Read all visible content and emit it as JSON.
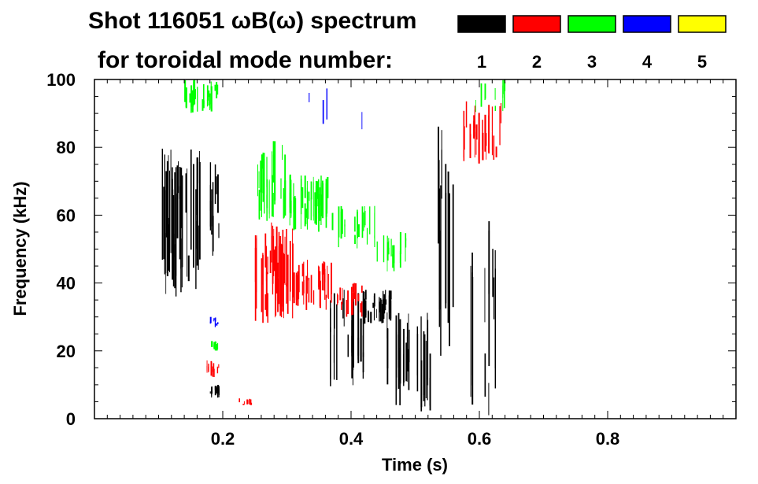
{
  "chart_data": {
    "type": "spectrogram",
    "title_line1": "Shot 116051 ωB(ω) spectrum",
    "title_line2": "for toroidal mode number:",
    "xlabel": "Time (s)",
    "ylabel": "Frequency (kHz)",
    "xlim": [
      0.0,
      1.0
    ],
    "ylim": [
      0,
      100
    ],
    "x_ticks": [
      {
        "value": 0.2,
        "label": "0.2"
      },
      {
        "value": 0.4,
        "label": "0.4"
      },
      {
        "value": 0.6,
        "label": "0.6"
      },
      {
        "value": 0.8,
        "label": "0.8"
      }
    ],
    "y_ticks": [
      {
        "value": 0,
        "label": "0"
      },
      {
        "value": 20,
        "label": "20"
      },
      {
        "value": 40,
        "label": "40"
      },
      {
        "value": 60,
        "label": "60"
      },
      {
        "value": 80,
        "label": "80"
      },
      {
        "value": 100,
        "label": "100"
      }
    ],
    "legend": [
      {
        "label": "1",
        "color": "#000000"
      },
      {
        "label": "2",
        "color": "#ff0000"
      },
      {
        "label": "3",
        "color": "#00ff00"
      },
      {
        "label": "4",
        "color": "#0000ff"
      },
      {
        "label": "5",
        "color": "#ffff00"
      }
    ],
    "series": [
      {
        "name": "1",
        "color": "#000000",
        "regions": [
          {
            "t": [
              0.105,
              0.165
            ],
            "f": [
              36,
              80
            ],
            "density": 0.9
          },
          {
            "t": [
              0.18,
              0.195
            ],
            "f": [
              48,
              76
            ],
            "density": 0.8
          },
          {
            "t": [
              0.365,
              0.42
            ],
            "f": [
              7,
              38
            ],
            "density": 0.35
          },
          {
            "t": [
              0.42,
              0.48
            ],
            "f": [
              28,
              38
            ],
            "density": 0.5
          },
          {
            "t": [
              0.44,
              0.53
            ],
            "f": [
              2,
              32
            ],
            "density": 0.25
          },
          {
            "t": [
              0.535,
              0.56
            ],
            "f": [
              18,
              87
            ],
            "density": 0.8
          },
          {
            "t": [
              0.58,
              0.63
            ],
            "f": [
              1,
              60
            ],
            "density": 0.2
          },
          {
            "t": [
              0.18,
              0.195
            ],
            "f": [
              6,
              10
            ],
            "density": 0.6
          }
        ]
      },
      {
        "name": "2",
        "color": "#ff0000",
        "regions": [
          {
            "t": [
              0.25,
              0.31
            ],
            "f": [
              28,
              58
            ],
            "density": 0.8
          },
          {
            "t": [
              0.31,
              0.37
            ],
            "f": [
              32,
              47
            ],
            "density": 0.65
          },
          {
            "t": [
              0.37,
              0.42
            ],
            "f": [
              30,
              40
            ],
            "density": 0.4
          },
          {
            "t": [
              0.575,
              0.635
            ],
            "f": [
              75,
              95
            ],
            "density": 0.6
          },
          {
            "t": [
              0.175,
              0.195
            ],
            "f": [
              12,
              18
            ],
            "density": 0.6
          },
          {
            "t": [
              0.225,
              0.245
            ],
            "f": [
              4,
              6
            ],
            "density": 0.7
          }
        ]
      },
      {
        "name": "3",
        "color": "#00ff00",
        "regions": [
          {
            "t": [
              0.25,
              0.3
            ],
            "f": [
              58,
              82
            ],
            "density": 0.7
          },
          {
            "t": [
              0.3,
              0.37
            ],
            "f": [
              55,
              72
            ],
            "density": 0.6
          },
          {
            "t": [
              0.37,
              0.44
            ],
            "f": [
              50,
              63
            ],
            "density": 0.5
          },
          {
            "t": [
              0.44,
              0.49
            ],
            "f": [
              43,
              55
            ],
            "density": 0.35
          },
          {
            "t": [
              0.14,
              0.195
            ],
            "f": [
              90,
              100
            ],
            "density": 0.5
          },
          {
            "t": [
              0.18,
              0.195
            ],
            "f": [
              20,
              23
            ],
            "density": 0.6
          },
          {
            "t": [
              0.59,
              0.64
            ],
            "f": [
              90,
              100
            ],
            "density": 0.3
          }
        ]
      },
      {
        "name": "4",
        "color": "#0000ff",
        "regions": [
          {
            "t": [
              0.33,
              0.44
            ],
            "f": [
              85,
              98
            ],
            "density": 0.08
          },
          {
            "t": [
              0.18,
              0.195
            ],
            "f": [
              27,
              30
            ],
            "density": 0.4
          }
        ]
      },
      {
        "name": "5",
        "color": "#ffff00",
        "regions": []
      }
    ]
  }
}
